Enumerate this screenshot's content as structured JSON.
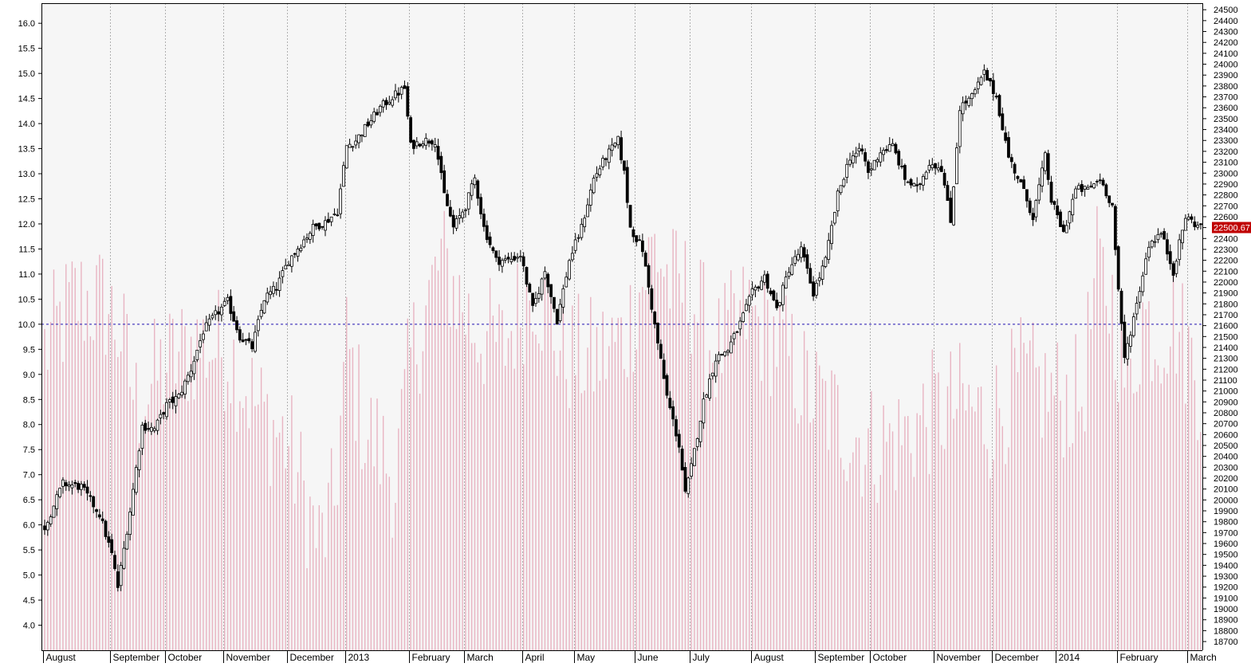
{
  "chart_data": {
    "type": "candlestick",
    "left_axis": {
      "ylim": [
        3.5,
        16.4
      ],
      "ticks": [
        "4.0",
        "4.5",
        "5.0",
        "5.5",
        "6.0",
        "6.5",
        "7.0",
        "7.5",
        "8.0",
        "8.5",
        "9.0",
        "9.5",
        "10.0",
        "10.5",
        "11.0",
        "11.5",
        "12.0",
        "12.5",
        "13.0",
        "13.5",
        "14.0",
        "14.5",
        "15.0",
        "15.5",
        "16.0"
      ]
    },
    "right_axis": {
      "ylim": [
        18620,
        24560
      ],
      "ticks": [
        "18700",
        "18800",
        "18900",
        "19000",
        "19100",
        "19200",
        "19300",
        "19400",
        "19500",
        "19600",
        "19700",
        "19800",
        "19900",
        "20000",
        "20100",
        "20200",
        "20300",
        "20400",
        "20500",
        "20600",
        "20700",
        "20800",
        "20900",
        "21000",
        "21100",
        "21200",
        "21300",
        "21400",
        "21500",
        "21600",
        "21700",
        "21800",
        "21900",
        "22000",
        "22100",
        "22200",
        "22300",
        "22400",
        "22500",
        "22600",
        "22700",
        "22800",
        "22900",
        "23000",
        "23100",
        "23200",
        "23300",
        "23400",
        "23500",
        "23600",
        "23700",
        "23800",
        "23900",
        "24000",
        "24100",
        "24200",
        "24300",
        "24400",
        "24500"
      ],
      "last_price_label": "22500.67",
      "last_price_value": 22500.67
    },
    "reference_line": {
      "value": 10.0,
      "axis": "left",
      "style": "dashed",
      "color": "#4b3fbf"
    },
    "x_labels": [
      "August",
      "September",
      "October",
      "November",
      "December",
      "2013",
      "February",
      "March",
      "April",
      "May",
      "June",
      "July",
      "August",
      "September",
      "October",
      "November",
      "December",
      "2014",
      "February",
      "March"
    ],
    "x_label_index": [
      0,
      22,
      40,
      59,
      80,
      99,
      120,
      138,
      157,
      174,
      194,
      212,
      232,
      253,
      271,
      292,
      311,
      332,
      352,
      375
    ],
    "num_sessions": 380,
    "vertical_bar_series_axis": "left",
    "vertical_bar_series_anchors": [
      [
        0,
        9.5
      ],
      [
        10,
        10.5
      ],
      [
        20,
        10.4
      ],
      [
        25,
        9.8
      ],
      [
        30,
        8.4
      ],
      [
        40,
        9.2
      ],
      [
        50,
        9.6
      ],
      [
        60,
        9.5
      ],
      [
        70,
        8.3
      ],
      [
        80,
        7.6
      ],
      [
        90,
        5.6
      ],
      [
        95,
        6.4
      ],
      [
        99,
        9.6
      ],
      [
        105,
        7.9
      ],
      [
        110,
        7.5
      ],
      [
        115,
        6.9
      ],
      [
        120,
        9.3
      ],
      [
        130,
        11.3
      ],
      [
        140,
        10.0
      ],
      [
        150,
        9.5
      ],
      [
        160,
        10.9
      ],
      [
        170,
        9.4
      ],
      [
        180,
        9.3
      ],
      [
        190,
        9.7
      ],
      [
        200,
        11.6
      ],
      [
        205,
        10.8
      ],
      [
        212,
        10.6
      ],
      [
        220,
        9.4
      ],
      [
        230,
        10.2
      ],
      [
        240,
        9.7
      ],
      [
        250,
        8.7
      ],
      [
        260,
        8.1
      ],
      [
        270,
        7.6
      ],
      [
        280,
        7.7
      ],
      [
        290,
        8.2
      ],
      [
        300,
        8.4
      ],
      [
        310,
        8.1
      ],
      [
        320,
        8.9
      ],
      [
        330,
        8.6
      ],
      [
        340,
        8.5
      ],
      [
        345,
        11.1
      ],
      [
        350,
        10.4
      ],
      [
        355,
        8.6
      ],
      [
        360,
        10.2
      ],
      [
        365,
        9.8
      ],
      [
        370,
        10.2
      ],
      [
        379,
        8.8
      ]
    ],
    "candle_series_axis": "right",
    "candle_close_anchors": [
      [
        0,
        19750
      ],
      [
        6,
        20150
      ],
      [
        12,
        20120
      ],
      [
        18,
        19870
      ],
      [
        22,
        19500
      ],
      [
        24,
        19200
      ],
      [
        28,
        19900
      ],
      [
        32,
        20680
      ],
      [
        36,
        20650
      ],
      [
        40,
        20870
      ],
      [
        44,
        20950
      ],
      [
        48,
        21200
      ],
      [
        52,
        21550
      ],
      [
        56,
        21700
      ],
      [
        60,
        21820
      ],
      [
        64,
        21500
      ],
      [
        68,
        21400
      ],
      [
        72,
        21850
      ],
      [
        76,
        21950
      ],
      [
        80,
        22200
      ],
      [
        84,
        22350
      ],
      [
        88,
        22500
      ],
      [
        92,
        22550
      ],
      [
        96,
        22650
      ],
      [
        99,
        23250
      ],
      [
        102,
        23300
      ],
      [
        106,
        23450
      ],
      [
        110,
        23600
      ],
      [
        114,
        23700
      ],
      [
        118,
        23780
      ],
      [
        120,
        23250
      ],
      [
        124,
        23300
      ],
      [
        128,
        23300
      ],
      [
        131,
        22800
      ],
      [
        134,
        22500
      ],
      [
        138,
        22700
      ],
      [
        141,
        22950
      ],
      [
        144,
        22500
      ],
      [
        148,
        22200
      ],
      [
        152,
        22200
      ],
      [
        156,
        22250
      ],
      [
        160,
        21750
      ],
      [
        164,
        22100
      ],
      [
        168,
        21650
      ],
      [
        172,
        22200
      ],
      [
        176,
        22500
      ],
      [
        180,
        22950
      ],
      [
        184,
        23150
      ],
      [
        188,
        23300
      ],
      [
        190,
        23000
      ],
      [
        192,
        22500
      ],
      [
        196,
        22300
      ],
      [
        200,
        21600
      ],
      [
        204,
        20950
      ],
      [
        208,
        20500
      ],
      [
        210,
        20050
      ],
      [
        212,
        20300
      ],
      [
        216,
        20900
      ],
      [
        220,
        21300
      ],
      [
        224,
        21380
      ],
      [
        228,
        21620
      ],
      [
        232,
        21900
      ],
      [
        236,
        22050
      ],
      [
        240,
        21750
      ],
      [
        244,
        22120
      ],
      [
        248,
        22300
      ],
      [
        252,
        21900
      ],
      [
        256,
        22200
      ],
      [
        260,
        22800
      ],
      [
        264,
        23150
      ],
      [
        268,
        23200
      ],
      [
        270,
        23000
      ],
      [
        274,
        23200
      ],
      [
        278,
        23250
      ],
      [
        282,
        22950
      ],
      [
        286,
        22850
      ],
      [
        290,
        23100
      ],
      [
        294,
        23050
      ],
      [
        297,
        22550
      ],
      [
        300,
        23600
      ],
      [
        304,
        23700
      ],
      [
        308,
        23920
      ],
      [
        312,
        23700
      ],
      [
        316,
        23150
      ],
      [
        320,
        22900
      ],
      [
        324,
        22600
      ],
      [
        328,
        23150
      ],
      [
        330,
        22750
      ],
      [
        334,
        22450
      ],
      [
        338,
        22850
      ],
      [
        342,
        22850
      ],
      [
        346,
        22950
      ],
      [
        350,
        22700
      ],
      [
        352,
        21900
      ],
      [
        354,
        21300
      ],
      [
        358,
        21800
      ],
      [
        362,
        22350
      ],
      [
        366,
        22450
      ],
      [
        370,
        22100
      ],
      [
        374,
        22600
      ],
      [
        379,
        22500
      ]
    ]
  }
}
